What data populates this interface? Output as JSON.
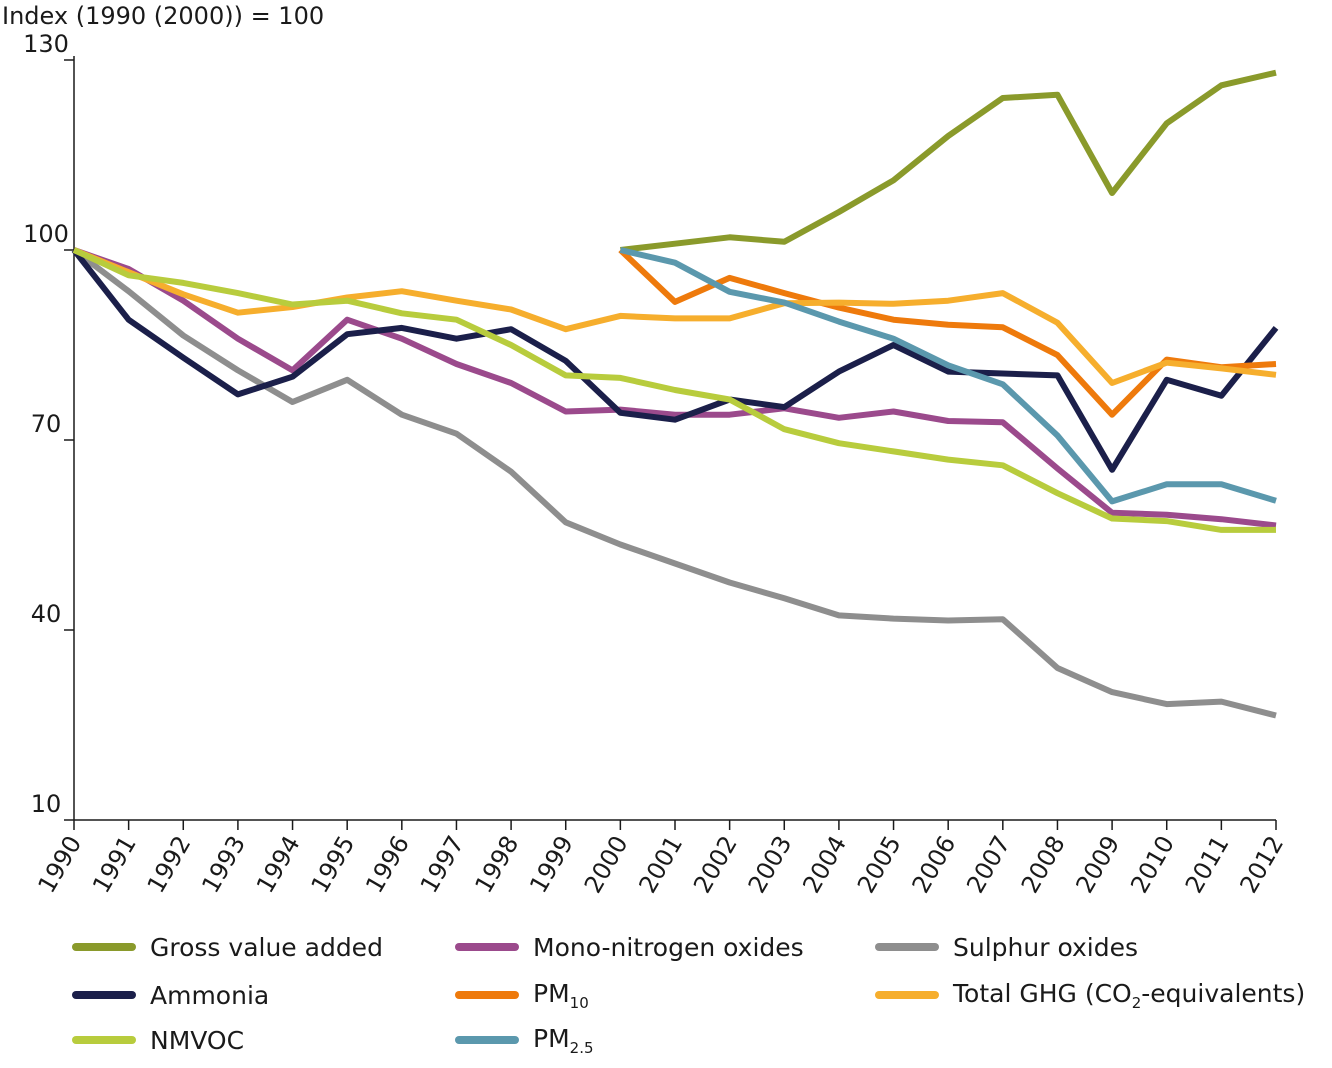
{
  "chart_data": {
    "type": "line",
    "ylabel": "Index (1990 (2000)) = 100",
    "xlabel": "",
    "title": "",
    "ylim": [
      10,
      130
    ],
    "yticks": [
      10,
      40,
      70,
      100,
      130
    ],
    "x": [
      "1990",
      "1991",
      "1992",
      "1993",
      "1994",
      "1995",
      "1996",
      "1997",
      "1998",
      "1999",
      "2000",
      "2001",
      "2002",
      "2003",
      "2004",
      "2005",
      "2006",
      "2007",
      "2008",
      "2009",
      "2010",
      "2011",
      "2012"
    ],
    "grid": false,
    "legend_position": "bottom",
    "series": [
      {
        "name": "Gross value added",
        "color": "#8a9a2b",
        "start": 10,
        "values": [
          null,
          null,
          null,
          null,
          null,
          null,
          null,
          null,
          null,
          null,
          100,
          101,
          102,
          101.3,
          106,
          111,
          118,
          124,
          124.5,
          109,
          120,
          126,
          128
        ]
      },
      {
        "name": "Mono-nitrogen oxides",
        "color": "#9b4a8c",
        "start": 0,
        "values": [
          100,
          97,
          92,
          86,
          81,
          89,
          86,
          82,
          79,
          74.5,
          74.8,
          74,
          74,
          75,
          73.5,
          74.5,
          73,
          72.8,
          65.5,
          58.5,
          58.2,
          57.5,
          56.5
        ]
      },
      {
        "name": "Sulphur oxides",
        "color": "#8e8e8e",
        "start": 0,
        "values": [
          100,
          93.5,
          86.5,
          81,
          76,
          79.5,
          74,
          71,
          65,
          57,
          53.5,
          50.5,
          47.5,
          45,
          42.3,
          41.8,
          41.5,
          41.7,
          34,
          30.2,
          28.3,
          28.7,
          26.5
        ]
      },
      {
        "name": "Ammonia",
        "color": "#1b1f4a",
        "start": 0,
        "values": [
          100,
          89,
          83,
          77.2,
          80,
          86.7,
          87.7,
          86,
          87.5,
          82.5,
          74.3,
          73.2,
          76.4,
          75.2,
          80.8,
          85,
          80.8,
          80.5,
          80.2,
          65.3,
          79.5,
          77,
          87.7
        ]
      },
      {
        "name": "PM",
        "sub": "10",
        "color": "#ee7a0c",
        "start": 10,
        "values": [
          null,
          null,
          null,
          null,
          null,
          null,
          null,
          null,
          null,
          null,
          100,
          91.8,
          95.6,
          93.2,
          90.9,
          89,
          88.2,
          87.8,
          83.4,
          74,
          82.7,
          81.5,
          82
        ]
      },
      {
        "name": "Total GHG (CO",
        "sub": "2",
        "suffix": "-equivalents)",
        "color": "#f6ae2d",
        "start": 0,
        "values": [
          100,
          96.5,
          93,
          90.1,
          91,
          92.5,
          93.5,
          92,
          90.6,
          87.5,
          89.6,
          89.2,
          89.2,
          91.6,
          91.7,
          91.5,
          92,
          93.2,
          88.5,
          79,
          82.2,
          81.3,
          80.3
        ]
      },
      {
        "name": "NMVOC",
        "color": "#b8cc3d",
        "start": 0,
        "values": [
          100,
          96,
          94.8,
          93.2,
          91.4,
          92,
          90,
          89,
          85,
          80.2,
          79.8,
          77.9,
          76.4,
          71.7,
          69.5,
          68.2,
          66.9,
          66,
          61.6,
          57.6,
          57.2,
          55.8,
          55.8
        ]
      },
      {
        "name": "PM",
        "sub": "2.5",
        "color": "#5b98ad",
        "start": 10,
        "values": [
          null,
          null,
          null,
          null,
          null,
          null,
          null,
          null,
          null,
          null,
          100,
          98,
          93.4,
          91.7,
          88.7,
          86,
          81.8,
          78.8,
          70.7,
          60.3,
          63,
          63,
          60.4
        ]
      }
    ]
  }
}
